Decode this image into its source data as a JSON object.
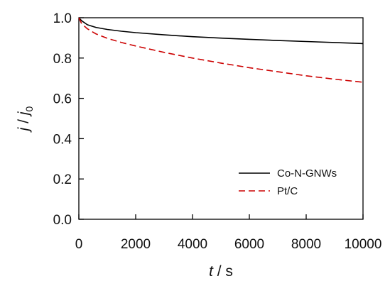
{
  "chart_data": {
    "type": "line",
    "xlabel": {
      "italic": "t",
      "rest": " / s"
    },
    "ylabel": {
      "j": "j",
      "slash": " / ",
      "j0": "j",
      "sub": "0"
    },
    "xlim": [
      0,
      10000
    ],
    "ylim": [
      0.0,
      1.0
    ],
    "xticks": [
      0,
      2000,
      4000,
      6000,
      8000,
      10000
    ],
    "xtick_labels": [
      "0",
      "2000",
      "4000",
      "6000",
      "8000",
      "10000"
    ],
    "yticks": [
      0.0,
      0.2,
      0.4,
      0.6,
      0.8,
      1.0
    ],
    "ytick_labels": [
      "0.0",
      "0.2",
      "0.4",
      "0.6",
      "0.8",
      "1.0"
    ],
    "grid": false,
    "legend_position": "bottom-right",
    "series": [
      {
        "name": "Co-N-GNWs",
        "color": "#000000",
        "style": "solid",
        "x": [
          0,
          100,
          300,
          600,
          1000,
          1500,
          2000,
          3000,
          4000,
          5000,
          6000,
          7000,
          8000,
          9000,
          10000
        ],
        "y": [
          1.0,
          0.985,
          0.965,
          0.952,
          0.942,
          0.933,
          0.926,
          0.915,
          0.906,
          0.899,
          0.893,
          0.887,
          0.882,
          0.877,
          0.872
        ]
      },
      {
        "name": "Pt/C",
        "color": "#cc0000",
        "style": "dashed",
        "x": [
          0,
          100,
          300,
          600,
          1000,
          1500,
          2000,
          3000,
          4000,
          5000,
          6000,
          7000,
          8000,
          9000,
          10000
        ],
        "y": [
          1.0,
          0.97,
          0.945,
          0.92,
          0.898,
          0.877,
          0.86,
          0.828,
          0.8,
          0.775,
          0.752,
          0.732,
          0.712,
          0.695,
          0.68
        ]
      }
    ]
  }
}
